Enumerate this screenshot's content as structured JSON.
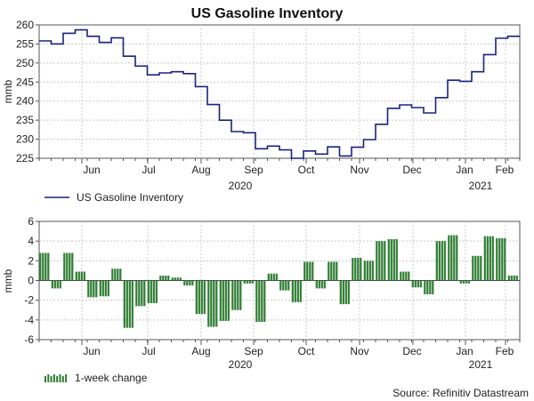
{
  "chart_data": [
    {
      "type": "line",
      "title": "US Gasoline Inventory",
      "ylabel": "mmb",
      "ylim": [
        225,
        260
      ],
      "yticks": [
        225,
        230,
        235,
        240,
        245,
        250,
        255,
        260
      ],
      "x_tick_labels": [
        "Jun",
        "Jul",
        "Aug",
        "Sep",
        "Oct",
        "Nov",
        "Dec",
        "Jan",
        "Feb"
      ],
      "year_labels": [
        "2020",
        "2021"
      ],
      "grid": true,
      "legend": "bottom-left",
      "series": [
        {
          "name": "US Gasoline Inventory",
          "color": "#1a237e",
          "values": [
            255.8,
            255.0,
            257.8,
            258.7,
            257.0,
            255.4,
            256.6,
            251.8,
            249.2,
            246.9,
            247.4,
            247.7,
            247.2,
            243.8,
            239.1,
            235.0,
            232.0,
            231.7,
            227.5,
            228.2,
            227.2,
            225.0,
            226.9,
            226.1,
            228.0,
            225.6,
            227.9,
            229.9,
            233.9,
            238.1,
            239.0,
            238.3,
            236.9,
            240.9,
            245.5,
            245.2,
            247.7,
            252.2,
            256.5,
            257.0
          ]
        }
      ]
    },
    {
      "type": "bar",
      "ylabel": "mmb",
      "ylim": [
        -6,
        6
      ],
      "yticks": [
        6,
        4,
        2,
        0,
        -2,
        -4,
        -6
      ],
      "x_tick_labels": [
        "Jun",
        "Jul",
        "Aug",
        "Sep",
        "Oct",
        "Nov",
        "Dec",
        "Jan",
        "Feb"
      ],
      "year_labels": [
        "2020",
        "2021"
      ],
      "grid": true,
      "legend": "bottom-left",
      "series": [
        {
          "name": "1-week change",
          "color": "#2e7d32",
          "values": [
            2.8,
            -0.8,
            2.8,
            0.9,
            -1.7,
            -1.6,
            1.2,
            -4.8,
            -2.6,
            -2.3,
            0.5,
            0.3,
            -0.5,
            -3.4,
            -4.7,
            -4.1,
            -3.0,
            -0.3,
            -4.2,
            0.7,
            -1.0,
            -2.2,
            1.9,
            -0.8,
            1.9,
            -2.4,
            2.3,
            2.0,
            4.0,
            4.2,
            0.9,
            -0.7,
            -1.4,
            4.0,
            4.6,
            -0.3,
            2.5,
            4.5,
            4.3,
            0.5
          ]
        }
      ]
    }
  ],
  "source": "Source: Refinitiv Datastream"
}
